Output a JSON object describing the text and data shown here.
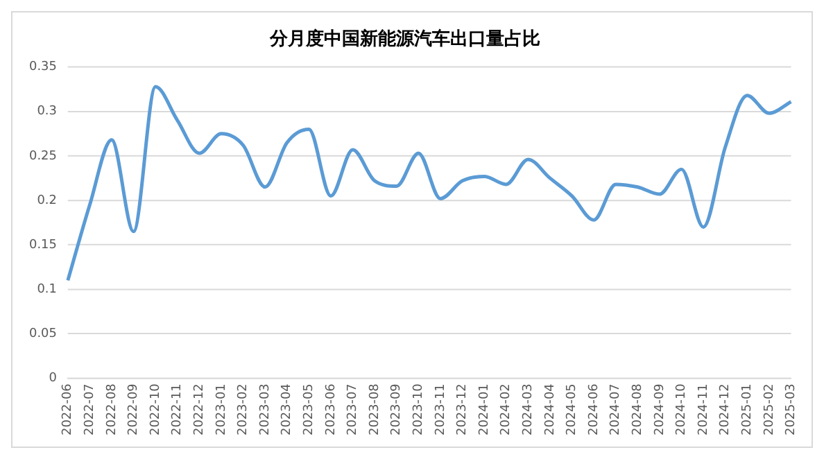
{
  "chart_data": {
    "type": "line",
    "title": "分月度中国新能源汽车出口量占比",
    "categories": [
      "2022-06",
      "2022-07",
      "2022-08",
      "2022-09",
      "2022-10",
      "2022-11",
      "2022-12",
      "2023-01",
      "2023-02",
      "2023-03",
      "2023-04",
      "2023-05",
      "2023-06",
      "2023-07",
      "2023-08",
      "2023-09",
      "2023-10",
      "2023-11",
      "2023-12",
      "2024-01",
      "2024-02",
      "2024-03",
      "2024-04",
      "2024-05",
      "2024-06",
      "2024-07",
      "2024-08",
      "2024-09",
      "2024-10",
      "2024-11",
      "2024-12",
      "2025-01",
      "2025-02",
      "2025-03"
    ],
    "series": [
      {
        "color": "#5b9bd5",
        "values": [
          0.11,
          0.195,
          0.268,
          0.165,
          0.328,
          0.29,
          0.253,
          0.275,
          0.262,
          0.215,
          0.265,
          0.28,
          0.205,
          0.257,
          0.222,
          0.216,
          0.253,
          0.202,
          0.222,
          0.227,
          0.218,
          0.246,
          0.225,
          0.205,
          0.178,
          0.218,
          0.215,
          0.207,
          0.235,
          0.17,
          0.26,
          0.318,
          0.298,
          0.311
        ]
      }
    ],
    "ylim": [
      0,
      0.35
    ],
    "yticks": [
      0,
      0.05,
      0.1,
      0.15,
      0.2,
      0.25,
      0.3,
      0.35
    ],
    "grid": "y",
    "marker": "none",
    "line_style": "solid",
    "legend": false
  }
}
